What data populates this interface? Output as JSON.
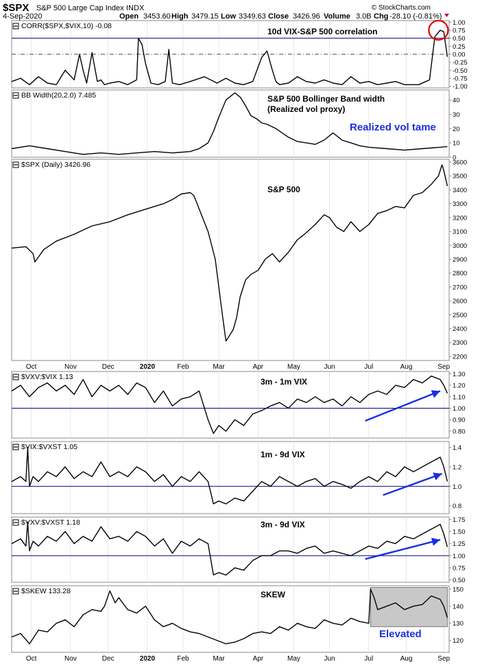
{
  "header": {
    "symbol": "$SPX",
    "name": "S&P 500 Large Cap Index",
    "exchange": "INDX",
    "date": "4-Sep-2020",
    "open_label": "Open",
    "open": "3453.60",
    "high_label": "High",
    "high": "3479.15",
    "low_label": "Low",
    "low": "3349.63",
    "close_label": "Close",
    "close": "3426.96",
    "volume_label": "Volume",
    "volume": "3.0B",
    "chg_label": "Chg",
    "chg": "-28.10 (-0.81%)",
    "brand": "© StockCharts.com"
  },
  "colors": {
    "frame": "#888888",
    "line": "#000000",
    "reference": "#000080",
    "arrow": "#1a2fe0",
    "blue_text": "#1a2fe0",
    "circle": "#e00000",
    "shade": "#c8c8c8",
    "grid": "#dddddd"
  },
  "x_axis": {
    "months": [
      {
        "label": "Oct",
        "t": 11
      },
      {
        "label": "Nov",
        "t": 33
      },
      {
        "label": "Dec",
        "t": 54
      },
      {
        "label": "2020",
        "t": 76,
        "bold": true
      },
      {
        "label": "Feb",
        "t": 96
      },
      {
        "label": "Mar",
        "t": 116
      },
      {
        "label": "Apr",
        "t": 138
      },
      {
        "label": "May",
        "t": 158
      },
      {
        "label": "Jun",
        "t": 178
      },
      {
        "label": "Jul",
        "t": 200
      },
      {
        "label": "Aug",
        "t": 221
      },
      {
        "label": "Sep",
        "t": 242
      }
    ],
    "t_range": [
      0,
      245
    ]
  },
  "chart_data": [
    {
      "type": "line",
      "legend": "CORR($SPX,$VIX,10) -0.08",
      "annotation": "10d VIX-S&P 500 correlation",
      "y_ticks": [
        "1.00",
        "0.75",
        "0.50",
        "0.25",
        "0.00",
        "-0.25",
        "-0.50",
        "-0.75",
        "-1.00"
      ],
      "ylim": [
        -1.05,
        1.05
      ],
      "ref_lines": [
        {
          "value": 0.5,
          "style": "solid"
        },
        {
          "value": 0.0,
          "style": "dashdot"
        }
      ],
      "highlight_circle": {
        "t": 239,
        "value": 0.75
      },
      "x": [
        0,
        5,
        10,
        15,
        20,
        25,
        30,
        35,
        38,
        40,
        42,
        45,
        48,
        50,
        52,
        55,
        60,
        65,
        70,
        71,
        73,
        75,
        78,
        82,
        86,
        88,
        90,
        94,
        100,
        108,
        115,
        120,
        125,
        130,
        135,
        140,
        143,
        146,
        148,
        150,
        155,
        160,
        165,
        170,
        175,
        180,
        185,
        190,
        195,
        200,
        205,
        210,
        215,
        220,
        228,
        234,
        237,
        240,
        242,
        244
      ],
      "y": [
        -0.85,
        -0.75,
        -0.95,
        -0.7,
        -0.9,
        -0.95,
        -0.5,
        -0.8,
        0.0,
        -0.5,
        -0.9,
        0.05,
        -0.85,
        -0.8,
        -0.95,
        -0.9,
        -0.85,
        -0.95,
        -0.8,
        0.5,
        0.3,
        -0.3,
        -0.9,
        -0.95,
        -0.85,
        0.15,
        -0.9,
        -0.95,
        -0.85,
        -0.7,
        -0.9,
        -0.75,
        -0.9,
        -0.95,
        -0.85,
        -0.1,
        0.1,
        -0.5,
        -0.85,
        -0.95,
        -0.9,
        -0.7,
        -0.85,
        -0.9,
        -0.8,
        -0.9,
        -0.95,
        -0.7,
        -0.9,
        -0.85,
        -0.95,
        -0.9,
        -0.85,
        -0.95,
        -0.95,
        -0.8,
        0.55,
        0.75,
        0.7,
        -0.08
      ]
    },
    {
      "type": "line",
      "legend": "BB Width(20,2.0) 7.485",
      "annotation_lines": [
        "S&P 500 Bollinger Band width",
        "(Realized vol proxy)"
      ],
      "comment": "Realized vol tame",
      "y_ticks": [
        "40",
        "30",
        "20",
        "10",
        "0"
      ],
      "ylim": [
        0,
        47
      ],
      "x": [
        0,
        10,
        20,
        30,
        40,
        50,
        60,
        70,
        80,
        90,
        100,
        105,
        110,
        113,
        116,
        120,
        125,
        128,
        131,
        134,
        137,
        140,
        143,
        148,
        155,
        160,
        165,
        170,
        175,
        180,
        185,
        190,
        195,
        200,
        210,
        220,
        230,
        240,
        244
      ],
      "y": [
        6,
        8,
        6,
        4,
        2,
        3,
        2,
        3,
        4,
        3,
        4,
        6,
        10,
        18,
        28,
        40,
        45,
        42,
        36,
        29,
        27,
        24,
        23,
        20,
        14,
        11,
        10,
        9,
        12,
        17,
        12,
        10,
        8,
        7,
        6,
        5,
        6,
        7,
        7.5
      ]
    },
    {
      "type": "line",
      "legend": "$SPX (Daily) 3426.96",
      "annotation": "S&P 500",
      "y_ticks": [
        "3600",
        "3500",
        "3400",
        "3300",
        "3200",
        "3100",
        "3000",
        "2900",
        "2800",
        "2700",
        "2600",
        "2500",
        "2400",
        "2300",
        "2200"
      ],
      "ylim": [
        2170,
        3620
      ],
      "x": [
        0,
        8,
        12,
        13,
        18,
        25,
        35,
        45,
        55,
        65,
        75,
        85,
        90,
        95,
        100,
        102,
        106,
        110,
        114,
        118,
        120,
        124,
        126,
        128,
        131,
        134,
        138,
        142,
        146,
        150,
        155,
        160,
        164,
        170,
        175,
        178,
        182,
        186,
        190,
        195,
        200,
        205,
        210,
        215,
        220,
        225,
        230,
        235,
        239,
        241,
        242,
        244
      ],
      "y": [
        2980,
        2990,
        2940,
        2880,
        2970,
        3030,
        3080,
        3140,
        3170,
        3220,
        3260,
        3300,
        3330,
        3370,
        3380,
        3360,
        3230,
        3100,
        2900,
        2500,
        2310,
        2390,
        2480,
        2630,
        2750,
        2790,
        2820,
        2900,
        2940,
        2880,
        2950,
        3040,
        3080,
        3150,
        3220,
        3200,
        3130,
        3100,
        3170,
        3100,
        3150,
        3230,
        3250,
        3280,
        3270,
        3360,
        3380,
        3440,
        3500,
        3580,
        3540,
        3426.96
      ]
    },
    {
      "type": "line",
      "legend": "$VXV:$VIX 1.13",
      "annotation": "3m - 1m VIX",
      "y_ticks": [
        "1.30",
        "1.20",
        "1.10",
        "1.00",
        "0.90",
        "0.80"
      ],
      "ylim": [
        0.74,
        1.32
      ],
      "ref_lines": [
        {
          "value": 1.0,
          "style": "solid"
        }
      ],
      "arrow": {
        "t1": 198,
        "v1": 0.89,
        "t2": 240,
        "v2": 1.15
      },
      "x": [
        0,
        5,
        10,
        15,
        20,
        25,
        30,
        35,
        40,
        45,
        50,
        55,
        60,
        65,
        70,
        75,
        80,
        85,
        90,
        95,
        100,
        105,
        110,
        113,
        116,
        120,
        125,
        130,
        135,
        140,
        145,
        150,
        155,
        160,
        165,
        170,
        175,
        180,
        185,
        190,
        195,
        200,
        205,
        210,
        215,
        220,
        225,
        230,
        235,
        240,
        242,
        244
      ],
      "y": [
        1.15,
        1.2,
        1.1,
        1.18,
        1.22,
        1.15,
        1.2,
        1.12,
        1.25,
        1.1,
        1.2,
        1.15,
        1.2,
        1.12,
        1.22,
        1.18,
        1.05,
        1.15,
        1.02,
        1.08,
        1.1,
        1.15,
        0.9,
        0.78,
        0.85,
        0.8,
        0.9,
        0.85,
        0.95,
        0.98,
        1.02,
        1.05,
        1.0,
        1.08,
        1.05,
        1.1,
        1.05,
        1.08,
        1.02,
        1.1,
        1.05,
        1.12,
        1.15,
        1.12,
        1.2,
        1.18,
        1.25,
        1.22,
        1.28,
        1.25,
        1.2,
        1.13
      ]
    },
    {
      "type": "line",
      "legend": "$VIX:$VXST 1.05",
      "annotation": "1m - 9d VIX",
      "y_ticks": [
        "1.4",
        "1.2",
        "1.0",
        "0.8"
      ],
      "ylim": [
        0.72,
        1.46
      ],
      "ref_lines": [
        {
          "value": 1.0,
          "style": "solid"
        }
      ],
      "arrow": {
        "t1": 208,
        "v1": 0.91,
        "t2": 241,
        "v2": 1.13
      },
      "x": [
        0,
        5,
        8,
        9,
        10,
        12,
        15,
        20,
        25,
        30,
        35,
        40,
        45,
        50,
        55,
        60,
        65,
        70,
        75,
        80,
        85,
        90,
        95,
        100,
        105,
        110,
        113,
        116,
        120,
        125,
        130,
        135,
        140,
        145,
        150,
        155,
        160,
        165,
        170,
        175,
        180,
        185,
        190,
        195,
        200,
        205,
        210,
        215,
        220,
        225,
        230,
        235,
        240,
        242,
        244
      ],
      "y": [
        1.05,
        1.1,
        1.05,
        1.4,
        1.0,
        1.1,
        1.05,
        1.15,
        1.1,
        1.2,
        1.08,
        1.15,
        1.1,
        1.25,
        1.1,
        1.15,
        1.1,
        1.2,
        1.15,
        1.05,
        1.12,
        1.0,
        1.1,
        1.05,
        1.15,
        1.05,
        0.82,
        0.85,
        0.82,
        0.88,
        0.85,
        0.95,
        1.05,
        1.0,
        1.1,
        1.05,
        1.0,
        1.05,
        1.08,
        1.0,
        1.05,
        1.02,
        0.98,
        1.05,
        1.1,
        1.05,
        1.15,
        1.1,
        1.2,
        1.15,
        1.2,
        1.25,
        1.3,
        1.2,
        1.05
      ]
    },
    {
      "type": "line",
      "legend": "$VXV:$VXST 1.18",
      "annotation": "3m - 9d VIX",
      "y_ticks": [
        "1.75",
        "1.50",
        "1.25",
        "1.00",
        "0.75",
        "0.50"
      ],
      "ylim": [
        0.45,
        1.8
      ],
      "ref_lines": [
        {
          "value": 1.0,
          "style": "solid"
        }
      ],
      "arrow": {
        "t1": 198,
        "v1": 0.93,
        "t2": 240,
        "v2": 1.33
      },
      "x": [
        0,
        5,
        8,
        9,
        10,
        12,
        15,
        20,
        25,
        30,
        35,
        40,
        45,
        50,
        55,
        60,
        65,
        70,
        75,
        80,
        85,
        90,
        95,
        100,
        105,
        110,
        113,
        116,
        120,
        125,
        130,
        135,
        140,
        145,
        150,
        155,
        160,
        165,
        170,
        175,
        180,
        185,
        190,
        195,
        200,
        205,
        210,
        215,
        220,
        225,
        230,
        235,
        240,
        242,
        244
      ],
      "y": [
        1.25,
        1.35,
        1.2,
        1.7,
        1.1,
        1.3,
        1.2,
        1.4,
        1.3,
        1.5,
        1.25,
        1.4,
        1.3,
        1.6,
        1.35,
        1.4,
        1.3,
        1.5,
        1.4,
        1.2,
        1.35,
        1.05,
        1.3,
        1.2,
        1.35,
        1.25,
        0.6,
        0.65,
        0.6,
        0.75,
        0.7,
        0.9,
        1.0,
        1.0,
        1.1,
        1.1,
        1.05,
        1.15,
        1.2,
        1.05,
        1.1,
        1.05,
        1.0,
        1.1,
        1.2,
        1.15,
        1.3,
        1.25,
        1.4,
        1.35,
        1.45,
        1.55,
        1.65,
        1.45,
        1.18
      ]
    },
    {
      "type": "line",
      "legend": "$SKEW 133.28",
      "annotation": "SKEW",
      "comment": "Elevated",
      "y_ticks": [
        "150",
        "140",
        "130",
        "120"
      ],
      "ylim": [
        113,
        152
      ],
      "shaded_region": {
        "t1": 201,
        "t2": 244,
        "v1": 128,
        "v2": 151
      },
      "x": [
        0,
        5,
        10,
        15,
        20,
        25,
        30,
        35,
        40,
        45,
        50,
        52,
        55,
        58,
        60,
        65,
        70,
        75,
        80,
        85,
        90,
        95,
        100,
        105,
        110,
        115,
        120,
        125,
        130,
        135,
        140,
        145,
        150,
        155,
        160,
        165,
        170,
        175,
        180,
        185,
        190,
        195,
        200,
        201,
        203,
        205,
        210,
        215,
        220,
        225,
        230,
        235,
        240,
        242,
        244
      ],
      "y": [
        122,
        124,
        118,
        126,
        125,
        130,
        132,
        128,
        135,
        138,
        137,
        140,
        149,
        142,
        145,
        138,
        136,
        140,
        132,
        128,
        130,
        127,
        125,
        124,
        122,
        120,
        118,
        119,
        121,
        124,
        125,
        124,
        128,
        126,
        130,
        128,
        127,
        132,
        130,
        129,
        133,
        131,
        130,
        150,
        145,
        138,
        140,
        142,
        138,
        140,
        141,
        146,
        144,
        140,
        133.28
      ]
    }
  ]
}
